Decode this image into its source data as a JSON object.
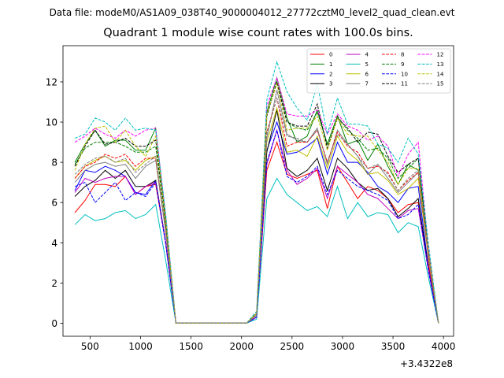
{
  "figure": {
    "suptitle": "Data file: modeM0/AS1A09_038T40_9000004012_27772cztM0_level2_quad_clean.evt"
  },
  "chart_data": {
    "type": "line",
    "title": "Quadrant 1 module wise count rates with 100.0s bins.",
    "xlabel": "",
    "ylabel": "",
    "x_offset_label": "+3.4322e8",
    "xlim": [
      232,
      4100
    ],
    "ylim": [
      -0.65,
      13.8
    ],
    "xticks": [
      500,
      1000,
      1500,
      2000,
      2500,
      3000,
      3500,
      4000
    ],
    "yticks": [
      0,
      2,
      4,
      6,
      8,
      10,
      12
    ],
    "legend_position": "upper-right",
    "x": [
      350,
      450,
      550,
      650,
      750,
      850,
      950,
      1050,
      1150,
      1250,
      1350,
      1450,
      1550,
      1650,
      1750,
      1850,
      1950,
      2050,
      2150,
      2250,
      2350,
      2450,
      2550,
      2650,
      2750,
      2850,
      2950,
      3050,
      3150,
      3250,
      3350,
      3450,
      3550,
      3650,
      3750,
      3850,
      3950
    ],
    "series": [
      {
        "name": "0",
        "color": "#ff0000",
        "dash": "solid",
        "values": [
          5.5,
          6.1,
          6.9,
          6.9,
          6.8,
          7.3,
          6.4,
          6.8,
          6.9,
          4.0,
          0.0,
          0.0,
          0.0,
          0.0,
          0.0,
          0.0,
          0.0,
          0.0,
          0.3,
          7.6,
          9.0,
          7.4,
          7.2,
          7.4,
          7.6,
          5.7,
          7.8,
          7.0,
          6.2,
          6.8,
          6.6,
          6.2,
          5.5,
          5.9,
          6.0,
          3.0,
          0.0
        ]
      },
      {
        "name": "1",
        "color": "#008000",
        "dash": "solid",
        "values": [
          8.0,
          8.9,
          9.6,
          8.8,
          9.1,
          9.1,
          8.6,
          8.6,
          9.7,
          5.0,
          0.0,
          0.0,
          0.0,
          0.0,
          0.0,
          0.0,
          0.0,
          0.0,
          0.5,
          10.5,
          12.2,
          10.2,
          9.0,
          9.3,
          10.6,
          8.9,
          10.3,
          8.9,
          9.1,
          8.1,
          8.9,
          7.8,
          6.9,
          7.9,
          7.6,
          3.6,
          0.0
        ]
      },
      {
        "name": "2",
        "color": "#0000ff",
        "dash": "solid",
        "values": [
          6.6,
          7.6,
          7.5,
          7.8,
          7.6,
          7.3,
          6.5,
          6.4,
          7.1,
          4.0,
          0.0,
          0.0,
          0.0,
          0.0,
          0.0,
          0.0,
          0.0,
          0.0,
          0.3,
          8.6,
          10.0,
          8.4,
          8.5,
          8.8,
          9.2,
          7.4,
          9.0,
          8.0,
          8.0,
          7.5,
          6.8,
          6.5,
          6.0,
          6.7,
          6.8,
          2.8,
          0.0
        ]
      },
      {
        "name": "3",
        "color": "#000000",
        "dash": "solid",
        "values": [
          6.3,
          6.8,
          7.1,
          7.6,
          7.2,
          7.6,
          6.8,
          6.8,
          7.1,
          4.0,
          0.0,
          0.0,
          0.0,
          0.0,
          0.0,
          0.0,
          0.0,
          0.0,
          0.4,
          8.5,
          10.6,
          7.7,
          7.3,
          7.6,
          8.2,
          6.6,
          8.2,
          7.7,
          7.0,
          6.6,
          6.7,
          6.2,
          5.3,
          5.7,
          6.2,
          2.7,
          0.0
        ]
      },
      {
        "name": "4",
        "color": "#bf00bf",
        "dash": "solid",
        "values": [
          6.5,
          7.2,
          7.0,
          7.2,
          7.3,
          7.3,
          6.4,
          6.8,
          7.0,
          4.0,
          0.0,
          0.0,
          0.0,
          0.0,
          0.0,
          0.0,
          0.0,
          0.0,
          0.3,
          7.9,
          9.6,
          7.6,
          6.9,
          7.2,
          7.7,
          6.2,
          7.8,
          7.4,
          7.0,
          6.4,
          6.2,
          5.7,
          5.2,
          5.6,
          5.7,
          2.7,
          0.0
        ]
      },
      {
        "name": "5",
        "color": "#00bfbf",
        "dash": "solid",
        "values": [
          4.9,
          5.4,
          5.1,
          5.2,
          5.5,
          5.6,
          5.2,
          5.4,
          5.9,
          3.1,
          0.0,
          0.0,
          0.0,
          0.0,
          0.0,
          0.0,
          0.0,
          0.0,
          0.2,
          6.2,
          7.2,
          6.4,
          6.0,
          5.6,
          5.8,
          5.3,
          6.8,
          5.2,
          6.0,
          5.3,
          5.5,
          5.4,
          4.5,
          5.0,
          4.8,
          2.3,
          0.0
        ]
      },
      {
        "name": "6",
        "color": "#bfbf00",
        "dash": "solid",
        "values": [
          7.2,
          7.8,
          8.1,
          8.3,
          8.0,
          8.1,
          7.6,
          8.1,
          8.3,
          4.6,
          0.0,
          0.0,
          0.0,
          0.0,
          0.0,
          0.0,
          0.0,
          0.0,
          0.4,
          9.0,
          10.7,
          8.5,
          8.6,
          8.3,
          9.3,
          7.7,
          9.3,
          8.5,
          8.1,
          7.4,
          7.5,
          7.1,
          6.4,
          6.7,
          7.2,
          3.3,
          0.0
        ]
      },
      {
        "name": "7",
        "color": "#808080",
        "dash": "solid",
        "values": [
          7.0,
          7.6,
          7.9,
          8.0,
          7.8,
          7.9,
          7.2,
          7.8,
          8.1,
          4.5,
          0.0,
          0.0,
          0.0,
          0.0,
          0.0,
          0.0,
          0.0,
          0.0,
          0.4,
          9.2,
          11.6,
          9.4,
          9.1,
          9.0,
          9.7,
          7.9,
          9.6,
          8.9,
          8.3,
          7.4,
          7.9,
          7.2,
          6.5,
          7.0,
          7.5,
          3.4,
          0.0
        ]
      },
      {
        "name": "8",
        "color": "#ff0000",
        "dash": "dashed",
        "values": [
          7.2,
          7.8,
          8.0,
          8.4,
          8.2,
          8.4,
          7.8,
          8.2,
          8.2,
          4.6,
          0.0,
          0.0,
          0.0,
          0.0,
          0.0,
          0.0,
          0.0,
          0.0,
          0.4,
          9.5,
          11.2,
          8.8,
          9.0,
          9.0,
          9.6,
          8.0,
          9.5,
          8.8,
          8.5,
          7.7,
          7.8,
          7.5,
          6.6,
          7.1,
          7.5,
          3.4,
          0.0
        ]
      },
      {
        "name": "9",
        "color": "#008000",
        "dash": "dashed",
        "values": [
          7.9,
          8.7,
          9.0,
          9.0,
          9.0,
          8.8,
          8.5,
          8.5,
          8.8,
          4.9,
          0.0,
          0.0,
          0.0,
          0.0,
          0.0,
          0.0,
          0.0,
          0.0,
          0.5,
          10.3,
          12.0,
          10.0,
          9.7,
          9.6,
          10.5,
          8.9,
          10.3,
          9.6,
          9.2,
          8.6,
          8.7,
          8.2,
          7.2,
          7.7,
          8.2,
          3.6,
          0.0
        ]
      },
      {
        "name": "10",
        "color": "#0000ff",
        "dash": "dashed",
        "values": [
          6.8,
          7.0,
          6.0,
          6.5,
          7.0,
          6.1,
          6.5,
          6.3,
          7.0,
          3.9,
          0.0,
          0.0,
          0.0,
          0.0,
          0.0,
          0.0,
          0.0,
          0.0,
          0.3,
          8.0,
          9.6,
          7.3,
          7.0,
          7.3,
          7.8,
          6.4,
          7.6,
          7.2,
          6.8,
          6.6,
          6.4,
          6.1,
          5.2,
          5.4,
          5.9,
          2.6,
          0.0
        ]
      },
      {
        "name": "11",
        "color": "#000000",
        "dash": "dashed",
        "values": [
          7.8,
          8.8,
          9.6,
          8.9,
          9.0,
          9.2,
          8.8,
          8.8,
          9.1,
          5.0,
          0.0,
          0.0,
          0.0,
          0.0,
          0.0,
          0.0,
          0.0,
          0.0,
          0.5,
          10.3,
          12.0,
          10.0,
          9.8,
          9.8,
          10.9,
          8.7,
          10.2,
          9.7,
          9.0,
          9.5,
          9.4,
          8.3,
          7.5,
          7.9,
          8.2,
          3.6,
          0.0
        ]
      },
      {
        "name": "12",
        "color": "#ff00ff",
        "dash": "dashed",
        "values": [
          9.0,
          9.3,
          9.7,
          9.4,
          9.2,
          9.6,
          9.3,
          9.6,
          9.7,
          5.3,
          0.0,
          0.0,
          0.0,
          0.0,
          0.0,
          0.0,
          0.0,
          0.0,
          0.5,
          10.8,
          12.2,
          10.4,
          10.3,
          10.3,
          10.6,
          9.4,
          10.4,
          9.8,
          9.6,
          9.1,
          9.3,
          8.8,
          7.3,
          8.4,
          9.0,
          3.8,
          0.0
        ]
      },
      {
        "name": "13",
        "color": "#00bfbf",
        "dash": "dashed",
        "values": [
          9.2,
          9.4,
          10.2,
          10.0,
          9.6,
          10.2,
          9.6,
          9.7,
          9.6,
          5.4,
          0.0,
          0.0,
          0.0,
          0.0,
          0.0,
          0.0,
          0.0,
          0.0,
          0.6,
          11.1,
          13.0,
          11.5,
          10.7,
          10.1,
          11.9,
          9.4,
          11.2,
          9.9,
          9.9,
          9.8,
          8.9,
          8.7,
          8.0,
          9.2,
          8.4,
          4.0,
          0.0
        ]
      },
      {
        "name": "14",
        "color": "#bfbf00",
        "dash": "dashed",
        "values": [
          7.6,
          8.9,
          9.7,
          9.8,
          9.0,
          9.6,
          8.8,
          8.3,
          9.3,
          5.1,
          0.0,
          0.0,
          0.0,
          0.0,
          0.0,
          0.0,
          0.0,
          0.0,
          0.5,
          10.4,
          11.9,
          9.6,
          9.7,
          9.7,
          10.3,
          8.6,
          10.2,
          9.4,
          9.3,
          9.3,
          8.6,
          8.0,
          6.9,
          7.7,
          7.7,
          3.6,
          0.0
        ]
      },
      {
        "name": "15",
        "color": "#808080",
        "dash": "dashed",
        "values": [
          7.4,
          7.9,
          8.2,
          8.3,
          8.0,
          8.2,
          7.5,
          7.9,
          8.3,
          4.6,
          0.0,
          0.0,
          0.0,
          0.0,
          0.0,
          0.0,
          0.0,
          0.0,
          0.4,
          9.4,
          11.2,
          9.3,
          9.2,
          9.0,
          9.6,
          8.0,
          9.4,
          8.9,
          8.3,
          7.7,
          7.9,
          7.4,
          6.6,
          7.2,
          7.6,
          3.4,
          0.0
        ]
      }
    ]
  }
}
